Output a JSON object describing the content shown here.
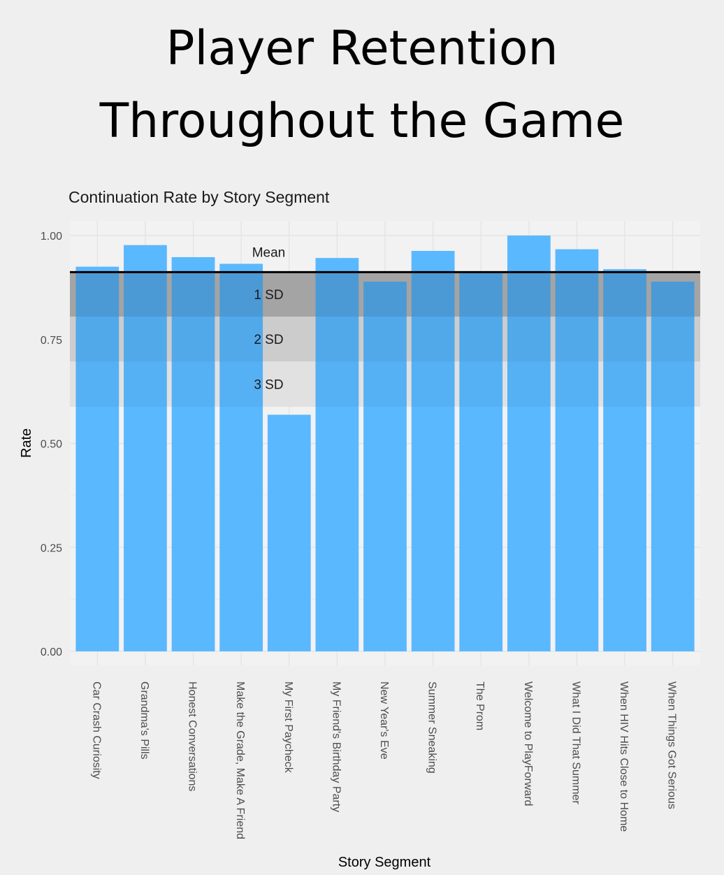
{
  "page": {
    "title_line1": "Player Retention",
    "title_line2": "Throughout the Game"
  },
  "chart_data": {
    "type": "bar",
    "title": "Continuation Rate by Story Segment",
    "xlabel": "Story Segment",
    "ylabel": "Rate",
    "ylim": [
      0,
      1.0
    ],
    "yticks": [
      0.0,
      0.25,
      0.5,
      0.75,
      1.0
    ],
    "ytick_labels": [
      "0.00",
      "0.25",
      "0.50",
      "0.75",
      "1.00"
    ],
    "categories": [
      "Car Crash Curiosity",
      "Grandma's Pills",
      "Honest Conversations",
      "Make the Grade, Make A Friend",
      "My First Paycheck",
      "My Friend's Birthday Party",
      "New Year's Eve",
      "Summer Sneaking",
      "The Prom",
      "Welcome to PlayForward",
      "What I Did That Summer",
      "When HIV Hits Close to Home",
      "When Things Got Serious"
    ],
    "values": [
      0.925,
      0.977,
      0.948,
      0.932,
      0.569,
      0.946,
      0.889,
      0.963,
      0.91,
      1.0,
      0.967,
      0.919,
      0.889
    ],
    "mean": 0.912,
    "bands": [
      {
        "label": "1 SD",
        "low": 0.805,
        "high": 0.912,
        "color": "#c4c4c4"
      },
      {
        "label": "2 SD",
        "low": 0.697,
        "high": 0.805,
        "color": "#dedede"
      },
      {
        "label": "3 SD",
        "low": 0.588,
        "high": 0.697,
        "color": "#ebebeb"
      }
    ],
    "mean_label": "Mean",
    "grid": true,
    "colors": {
      "bar": "#5ab8fe",
      "bar_shaded": "#4da8ea",
      "mean_line": "#000000",
      "panel": "#f2f2f2",
      "grid": "#e2e2e2"
    }
  }
}
